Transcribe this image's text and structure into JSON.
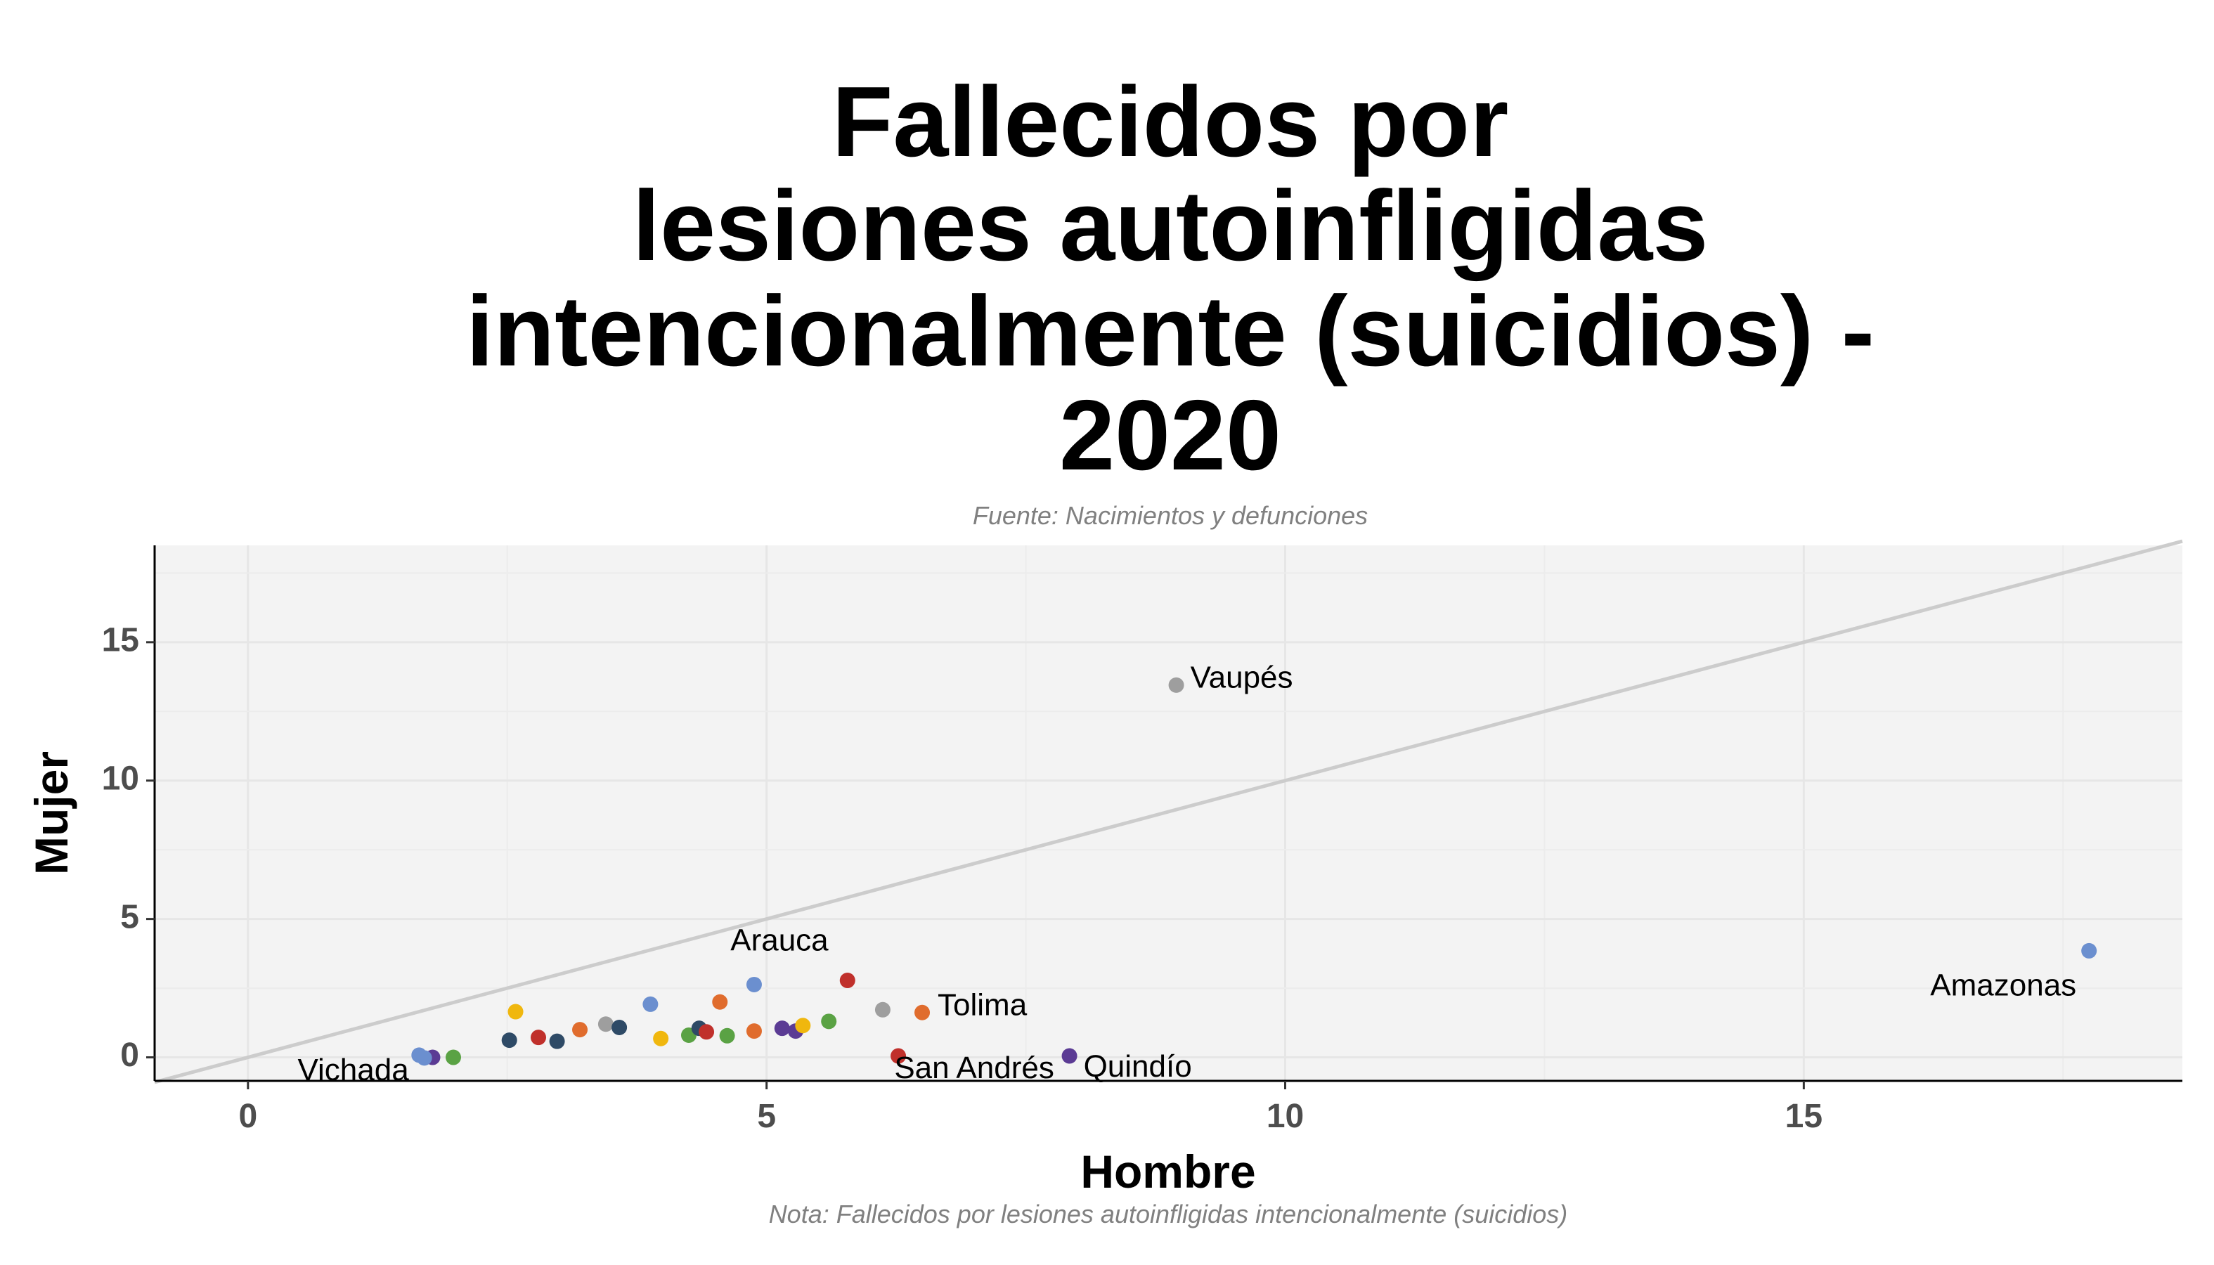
{
  "chart_data": {
    "type": "scatter",
    "title_lines": [
      "Fallecidos por",
      "lesiones autoinfligidas",
      "intencionalmente (suicidios) -",
      "2020"
    ],
    "subtitle": "Fuente: Nacimientos y defunciones",
    "caption": "Nota: Fallecidos por lesiones autoinfligidas intencionalmente (suicidios)",
    "xlabel": "Hombre",
    "ylabel": "Mujer",
    "xlim": [
      -0.9,
      18.65
    ],
    "ylim": [
      -0.85,
      18.5
    ],
    "x_ticks": [
      0,
      5,
      10,
      15
    ],
    "y_ticks": [
      0,
      5,
      10,
      15
    ],
    "grid": true,
    "panel_background": "#f3f3f3",
    "grid_color": "#e6e6e6",
    "reference_line": {
      "slope": 1,
      "intercept": 0,
      "color": "#cccccc"
    },
    "points": [
      {
        "x": 1.65,
        "y": 0.08,
        "color": "#6b8fcf"
      },
      {
        "x": 1.78,
        "y": 0.0,
        "color": "#5b3b94"
      },
      {
        "x": 1.98,
        "y": 0.0,
        "color": "#5aa244"
      },
      {
        "x": 2.52,
        "y": 0.62,
        "color": "#2e4a66"
      },
      {
        "x": 2.58,
        "y": 1.65,
        "color": "#f0b70e"
      },
      {
        "x": 2.8,
        "y": 0.72,
        "color": "#c0302b"
      },
      {
        "x": 2.98,
        "y": 0.58,
        "color": "#2e4a66"
      },
      {
        "x": 3.2,
        "y": 1.0,
        "color": "#e06c2d"
      },
      {
        "x": 3.45,
        "y": 1.2,
        "color": "#9e9e9e"
      },
      {
        "x": 3.58,
        "y": 1.08,
        "color": "#2e4a66"
      },
      {
        "x": 3.88,
        "y": 1.92,
        "color": "#6b8fcf"
      },
      {
        "x": 3.98,
        "y": 0.68,
        "color": "#f0b70e"
      },
      {
        "x": 4.25,
        "y": 0.8,
        "color": "#5aa244"
      },
      {
        "x": 4.35,
        "y": 1.05,
        "color": "#2e4a66"
      },
      {
        "x": 4.42,
        "y": 0.92,
        "color": "#c0302b"
      },
      {
        "x": 4.55,
        "y": 2.0,
        "color": "#e06c2d"
      },
      {
        "x": 4.62,
        "y": 0.78,
        "color": "#5aa244"
      },
      {
        "x": 4.88,
        "y": 0.95,
        "color": "#e06c2d"
      },
      {
        "x": 4.88,
        "y": 2.63,
        "color": "#6b8fcf",
        "label": "Arauca"
      },
      {
        "x": 5.15,
        "y": 1.05,
        "color": "#5b3b94"
      },
      {
        "x": 5.28,
        "y": 0.95,
        "color": "#5b3b94"
      },
      {
        "x": 5.35,
        "y": 1.15,
        "color": "#f0b70e"
      },
      {
        "x": 5.6,
        "y": 1.3,
        "color": "#5aa244"
      },
      {
        "x": 5.78,
        "y": 2.78,
        "color": "#c0302b"
      },
      {
        "x": 6.12,
        "y": 1.72,
        "color": "#9e9e9e"
      },
      {
        "x": 6.27,
        "y": 0.05,
        "color": "#c0302b",
        "label": "San Andrés"
      },
      {
        "x": 6.5,
        "y": 1.62,
        "color": "#e06c2d",
        "label": "Tolima"
      },
      {
        "x": 7.92,
        "y": 0.05,
        "color": "#5b3b94",
        "label": "Quindío"
      },
      {
        "x": 8.95,
        "y": 13.45,
        "color": "#9e9e9e",
        "label": "Vaupés"
      },
      {
        "x": 17.75,
        "y": 3.85,
        "color": "#6b8fcf",
        "label": "Amazonas"
      },
      {
        "x": 1.7,
        "y": -0.02,
        "color": "#6b8fcf",
        "label": "Vichada"
      }
    ]
  }
}
